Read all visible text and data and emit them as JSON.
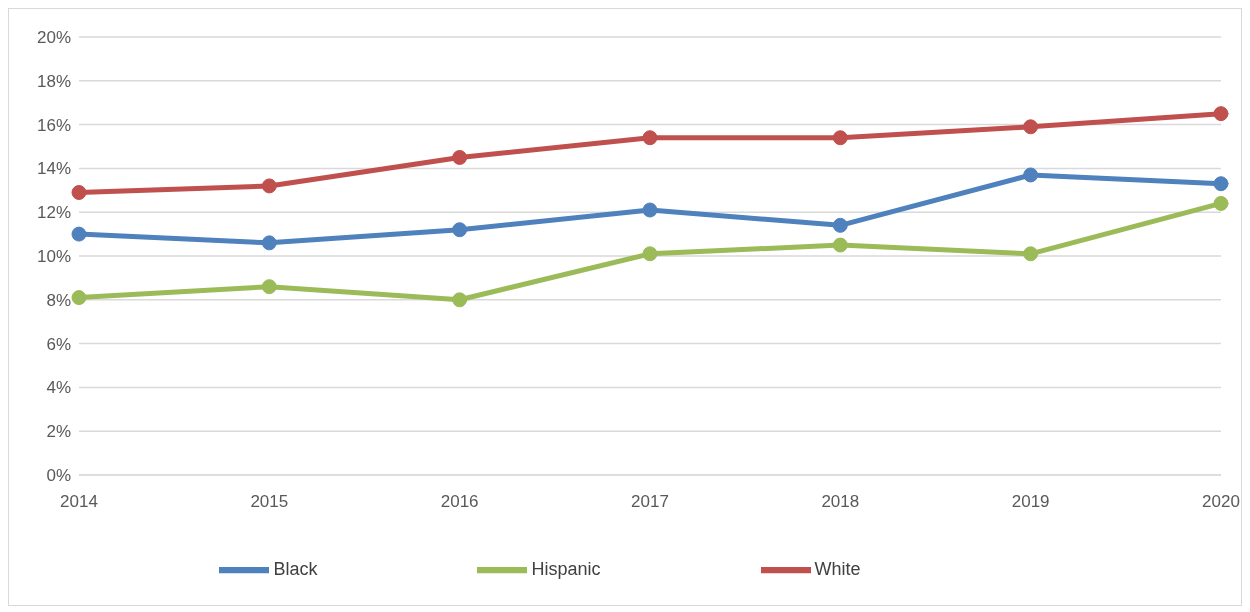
{
  "chart_data": {
    "type": "line",
    "categories": [
      "2014",
      "2015",
      "2016",
      "2017",
      "2018",
      "2019",
      "2020"
    ],
    "series": [
      {
        "name": "Black",
        "color": "#4f81bd",
        "values": [
          11.0,
          10.6,
          11.2,
          12.1,
          11.4,
          13.7,
          13.3
        ]
      },
      {
        "name": "White",
        "color": "#c0504d",
        "values": [
          12.9,
          13.2,
          14.5,
          15.4,
          15.4,
          15.9,
          16.5
        ]
      },
      {
        "name": "Hispanic",
        "color": "#9bbb59",
        "values": [
          8.1,
          8.6,
          8.0,
          10.1,
          10.5,
          10.1,
          12.4
        ]
      }
    ],
    "ylim": [
      0,
      20
    ],
    "yticks": [
      {
        "value": 0,
        "label": "0%"
      },
      {
        "value": 2,
        "label": "2%"
      },
      {
        "value": 4,
        "label": "4%"
      },
      {
        "value": 6,
        "label": "6%"
      },
      {
        "value": 8,
        "label": "8%"
      },
      {
        "value": 10,
        "label": "10%"
      },
      {
        "value": 12,
        "label": "12%"
      },
      {
        "value": 14,
        "label": "14%"
      },
      {
        "value": 16,
        "label": "16%"
      },
      {
        "value": 18,
        "label": "18%"
      },
      {
        "value": 20,
        "label": "20%"
      }
    ],
    "grid": "y",
    "legend": "bottom",
    "marker": "circle",
    "line_style": "solid"
  }
}
